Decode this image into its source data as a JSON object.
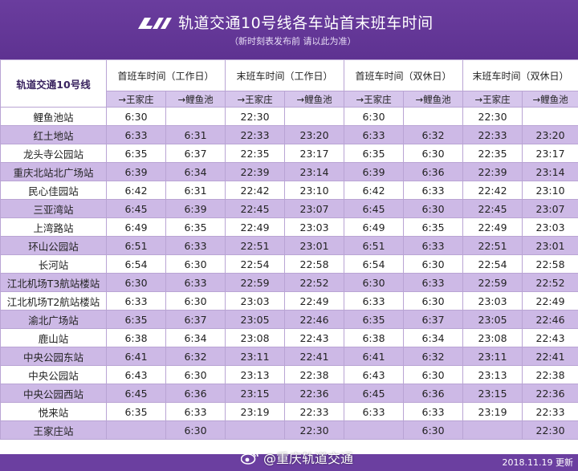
{
  "header": {
    "title": "轨道交通10号线各车站首末班车时间",
    "subtitle": "（新时刻表发布前 请以此为准）"
  },
  "table": {
    "line_name": "轨道交通10号线",
    "groups": [
      "首班车时间（工作日）",
      "末班车时间（工作日）",
      "首班车时间（双休日）",
      "末班车时间（双休日）"
    ],
    "directions": [
      "→王家庄",
      "→鲤鱼池",
      "→王家庄",
      "→鲤鱼池",
      "→王家庄",
      "→鲤鱼池",
      "→王家庄",
      "→鲤鱼池"
    ],
    "rows": [
      {
        "station": "鲤鱼池站",
        "times": [
          "6:30",
          "",
          "22:30",
          "",
          "6:30",
          "",
          "22:30",
          ""
        ]
      },
      {
        "station": "红土地站",
        "times": [
          "6:33",
          "6:31",
          "22:33",
          "23:20",
          "6:33",
          "6:32",
          "22:33",
          "23:20"
        ]
      },
      {
        "station": "龙头寺公园站",
        "times": [
          "6:35",
          "6:37",
          "22:35",
          "23:17",
          "6:35",
          "6:30",
          "22:35",
          "23:17"
        ]
      },
      {
        "station": "重庆北站北广场站",
        "times": [
          "6:39",
          "6:34",
          "22:39",
          "23:14",
          "6:39",
          "6:36",
          "22:39",
          "23:14"
        ]
      },
      {
        "station": "民心佳园站",
        "times": [
          "6:42",
          "6:31",
          "22:42",
          "23:10",
          "6:42",
          "6:33",
          "22:42",
          "23:10"
        ]
      },
      {
        "station": "三亚湾站",
        "times": [
          "6:45",
          "6:39",
          "22:45",
          "23:07",
          "6:45",
          "6:30",
          "22:45",
          "23:07"
        ]
      },
      {
        "station": "上湾路站",
        "times": [
          "6:49",
          "6:35",
          "22:49",
          "23:03",
          "6:49",
          "6:35",
          "22:49",
          "23:03"
        ]
      },
      {
        "station": "环山公园站",
        "times": [
          "6:51",
          "6:33",
          "22:51",
          "23:01",
          "6:51",
          "6:33",
          "22:51",
          "23:01"
        ]
      },
      {
        "station": "长河站",
        "times": [
          "6:54",
          "6:30",
          "22:54",
          "22:58",
          "6:54",
          "6:30",
          "22:54",
          "22:58"
        ]
      },
      {
        "station": "江北机场T3航站楼站",
        "times": [
          "6:30",
          "6:33",
          "22:59",
          "22:52",
          "6:30",
          "6:33",
          "22:59",
          "22:52"
        ]
      },
      {
        "station": "江北机场T2航站楼站",
        "times": [
          "6:33",
          "6:30",
          "23:03",
          "22:49",
          "6:33",
          "6:30",
          "23:03",
          "22:49"
        ]
      },
      {
        "station": "渝北广场站",
        "times": [
          "6:35",
          "6:37",
          "23:05",
          "22:46",
          "6:35",
          "6:37",
          "23:05",
          "22:46"
        ]
      },
      {
        "station": "鹿山站",
        "times": [
          "6:38",
          "6:34",
          "23:08",
          "22:43",
          "6:38",
          "6:34",
          "23:08",
          "22:43"
        ]
      },
      {
        "station": "中央公园东站",
        "times": [
          "6:41",
          "6:32",
          "23:11",
          "22:41",
          "6:41",
          "6:32",
          "23:11",
          "22:41"
        ]
      },
      {
        "station": "中央公园站",
        "times": [
          "6:43",
          "6:30",
          "23:13",
          "22:38",
          "6:43",
          "6:30",
          "23:13",
          "22:38"
        ]
      },
      {
        "station": "中央公园西站",
        "times": [
          "6:45",
          "6:36",
          "23:15",
          "22:36",
          "6:45",
          "6:36",
          "23:15",
          "22:36"
        ]
      },
      {
        "station": "悦来站",
        "times": [
          "6:35",
          "6:33",
          "23:19",
          "22:33",
          "6:33",
          "6:33",
          "23:19",
          "22:33"
        ]
      },
      {
        "station": "王家庄站",
        "times": [
          "",
          "6:30",
          "",
          "22:30",
          "",
          "6:30",
          "",
          "22:30"
        ]
      }
    ]
  },
  "footer": {
    "weibo_account": "@重庆轨道交通",
    "updated": "2018.11.19 更新"
  },
  "colors": {
    "brand_purple": "#6b3fa0",
    "row_alt": "#cdb9e6",
    "direction_row": "#d6c6ec"
  },
  "icons": {
    "logo": "crt-logo-icon",
    "weibo": "weibo-icon"
  }
}
